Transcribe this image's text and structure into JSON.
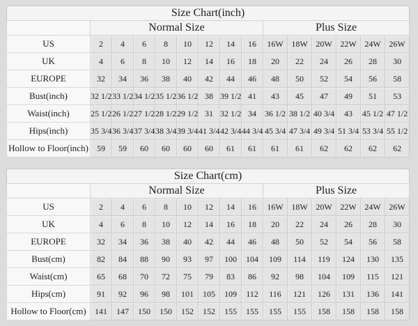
{
  "chart_data": [
    {
      "type": "table",
      "title": "Size Chart(inch)",
      "groups": [
        {
          "label": "Normal Size",
          "span": 8
        },
        {
          "label": "Plus Size",
          "span": 6
        }
      ],
      "column_sizes": [
        "2",
        "4",
        "6",
        "8",
        "10",
        "12",
        "14",
        "16",
        "16W",
        "18W",
        "20W",
        "22W",
        "24W",
        "26W"
      ],
      "rows": [
        {
          "label": "US",
          "values": [
            "2",
            "4",
            "6",
            "8",
            "10",
            "12",
            "14",
            "16",
            "16W",
            "18W",
            "20W",
            "22W",
            "24W",
            "26W"
          ]
        },
        {
          "label": "UK",
          "values": [
            "4",
            "6",
            "8",
            "10",
            "12",
            "14",
            "16",
            "18",
            "20",
            "22",
            "24",
            "26",
            "28",
            "30"
          ]
        },
        {
          "label": "EUROPE",
          "values": [
            "32",
            "34",
            "36",
            "38",
            "40",
            "42",
            "44",
            "46",
            "48",
            "50",
            "52",
            "54",
            "56",
            "58"
          ]
        },
        {
          "label": "Bust(inch)",
          "values": [
            "32 1/2",
            "33 1/2",
            "34 1/2",
            "35 1/2",
            "36 1/2",
            "38",
            "39 1/2",
            "41",
            "43",
            "45",
            "47",
            "49",
            "51",
            "53"
          ]
        },
        {
          "label": "Waist(inch)",
          "values": [
            "25 1/2",
            "26 1/2",
            "27 1/2",
            "28 1/2",
            "29 1/2",
            "31",
            "32 1/2",
            "34",
            "36 1/2",
            "38 1/2",
            "40 3/4",
            "43",
            "45 1/2",
            "47 1/2"
          ]
        },
        {
          "label": "Hips(inch)",
          "values": [
            "35 3/4",
            "36 3/4",
            "37 3/4",
            "38 3/4",
            "39 3/4",
            "41 3/4",
            "42 3/4",
            "44 3/4",
            "45 3/4",
            "47 3/4",
            "49 3/4",
            "51 3/4",
            "53 3/4",
            "55 1/2"
          ]
        },
        {
          "label": "Hollow to Floor(inch)",
          "values": [
            "59",
            "59",
            "60",
            "60",
            "60",
            "60",
            "61",
            "61",
            "61",
            "61",
            "62",
            "62",
            "62",
            "62"
          ]
        }
      ]
    },
    {
      "type": "table",
      "title": "Size Chart(cm)",
      "groups": [
        {
          "label": "Normal Size",
          "span": 8
        },
        {
          "label": "Plus Size",
          "span": 6
        }
      ],
      "column_sizes": [
        "2",
        "4",
        "6",
        "8",
        "10",
        "12",
        "14",
        "16",
        "16W",
        "18W",
        "20W",
        "22W",
        "24W",
        "26W"
      ],
      "rows": [
        {
          "label": "US",
          "values": [
            "2",
            "4",
            "6",
            "8",
            "10",
            "12",
            "14",
            "16",
            "16W",
            "18W",
            "20W",
            "22W",
            "24W",
            "26W"
          ]
        },
        {
          "label": "UK",
          "values": [
            "4",
            "6",
            "8",
            "10",
            "12",
            "14",
            "16",
            "18",
            "20",
            "22",
            "24",
            "26",
            "28",
            "30"
          ]
        },
        {
          "label": "EUROPE",
          "values": [
            "32",
            "34",
            "36",
            "38",
            "40",
            "42",
            "44",
            "46",
            "48",
            "50",
            "52",
            "54",
            "56",
            "58"
          ]
        },
        {
          "label": "Bust(cm)",
          "values": [
            "82",
            "84",
            "88",
            "90",
            "93",
            "97",
            "100",
            "104",
            "109",
            "114",
            "119",
            "124",
            "130",
            "135"
          ]
        },
        {
          "label": "Waist(cm)",
          "values": [
            "65",
            "68",
            "70",
            "72",
            "75",
            "79",
            "83",
            "86",
            "92",
            "98",
            "104",
            "109",
            "115",
            "121"
          ]
        },
        {
          "label": "Hips(cm)",
          "values": [
            "91",
            "92",
            "96",
            "98",
            "101",
            "105",
            "109",
            "112",
            "116",
            "121",
            "126",
            "131",
            "136",
            "141"
          ]
        },
        {
          "label": "Hollow to Floor(cm)",
          "values": [
            "141",
            "147",
            "150",
            "150",
            "152",
            "152",
            "155",
            "155",
            "155",
            "155",
            "158",
            "158",
            "158",
            "158"
          ]
        }
      ]
    }
  ],
  "colors": {
    "page_background": "#dcdcdc",
    "label_cell_background": "#f8f8f8",
    "data_cell_background": "#e4e4e4",
    "header_background": "#f4f4f4",
    "border": "#cbcbcb",
    "text": "#1c1c1c"
  }
}
